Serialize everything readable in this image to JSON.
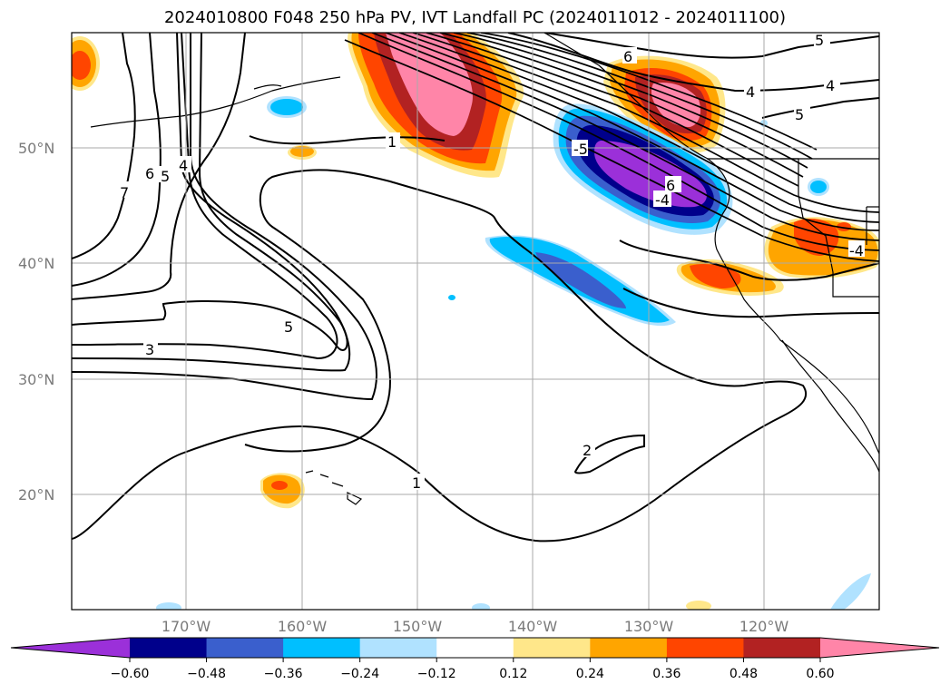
{
  "title": "2024010800 F048 250 hPa PV, IVT Landfall PC (2024011012 - 2024011100)",
  "latitude_labels": [
    "50°N",
    "40°N",
    "30°N",
    "20°N"
  ],
  "longitude_labels": [
    "170°W",
    "160°W",
    "150°W",
    "140°W",
    "130°W",
    "120°W"
  ],
  "contour_labels": [
    "5",
    "6",
    "4",
    "-5",
    "-4",
    "4",
    "6",
    "-4",
    "5",
    "7",
    "6",
    "5",
    "4",
    "1",
    "5",
    "3",
    "2",
    "1"
  ],
  "colorbar": {
    "ticks": [
      "−0.60",
      "−0.48",
      "−0.36",
      "−0.24",
      "−0.12",
      "0.12",
      "0.24",
      "0.36",
      "0.48",
      "0.60"
    ],
    "colors": [
      "#9b30d9",
      "#00008b",
      "#3a5fcd",
      "#00bfff",
      "#b0e2ff",
      "#ffffff",
      "#ffe78a",
      "#ffa500",
      "#ff4500",
      "#b22222",
      "#ff85a8"
    ]
  }
}
